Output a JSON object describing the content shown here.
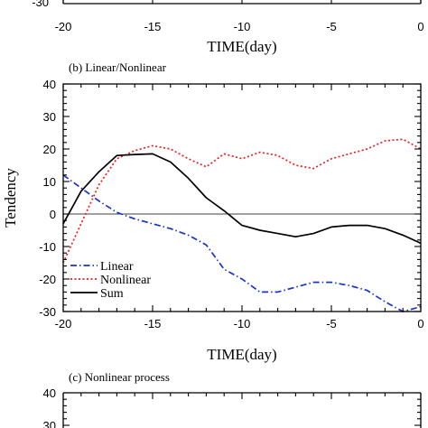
{
  "panel_a": {
    "xticks": [
      "-20",
      "-15",
      "-10",
      "-5",
      "0"
    ],
    "ytick_bottom": "-30",
    "xlabel": "TIME(day)"
  },
  "panel_c": {
    "title": "(c) Nonlinear process",
    "yticks": [
      "40",
      "30"
    ]
  },
  "chart_data": {
    "type": "line",
    "title": "(b) Linear/Nonlinear",
    "xlabel": "TIME(day)",
    "ylabel": "Tendency",
    "xlim": [
      -20,
      0
    ],
    "ylim": [
      -30,
      40
    ],
    "xticks": [
      "-20",
      "-15",
      "-10",
      "-5",
      "0"
    ],
    "yticks": [
      "40",
      "30",
      "20",
      "10",
      "0",
      "-10",
      "-20",
      "-30"
    ],
    "zero_line": true,
    "legend_position": "bottom-left",
    "series": [
      {
        "name": "Linear",
        "color": "#1a33cc",
        "dash": "dash-dot",
        "x": [
          -20,
          -19,
          -18,
          -17,
          -16,
          -15,
          -14,
          -13,
          -12,
          -11,
          -10,
          -9,
          -8,
          -7,
          -6,
          -5,
          -4,
          -3,
          -2,
          -1,
          0
        ],
        "y": [
          12,
          8,
          4,
          0.5,
          -1.5,
          -3,
          -4.5,
          -6.5,
          -9.5,
          -17,
          -20,
          -24,
          -24,
          -22.5,
          -21,
          -21,
          -22,
          -23.5,
          -27,
          -30,
          -28.5
        ]
      },
      {
        "name": "Nonlinear",
        "color": "#e82020",
        "dash": "dotted",
        "x": [
          -20,
          -19,
          -18,
          -17,
          -16,
          -15,
          -14,
          -13,
          -12,
          -11,
          -10,
          -9,
          -8,
          -7,
          -6,
          -5,
          -4,
          -3,
          -2,
          -1,
          0
        ],
        "y": [
          -15,
          -3,
          9,
          17,
          19.5,
          21,
          20,
          17,
          14.5,
          18.5,
          17,
          19,
          18,
          15,
          14,
          17,
          18.5,
          20,
          22.5,
          23,
          20
        ]
      },
      {
        "name": "Sum",
        "color": "#000000",
        "dash": "solid",
        "x": [
          -20,
          -19,
          -18,
          -17,
          -16,
          -15,
          -14,
          -13,
          -12,
          -11,
          -10,
          -9,
          -8,
          -7,
          -6,
          -5,
          -4,
          -3,
          -2,
          -1,
          0
        ],
        "y": [
          -3,
          7,
          13,
          18,
          18.3,
          18.5,
          16,
          11,
          5,
          1,
          -3.5,
          -5,
          -6,
          -7,
          -6,
          -4,
          -3.5,
          -3.5,
          -4.5,
          -6.5,
          -9
        ]
      }
    ]
  }
}
